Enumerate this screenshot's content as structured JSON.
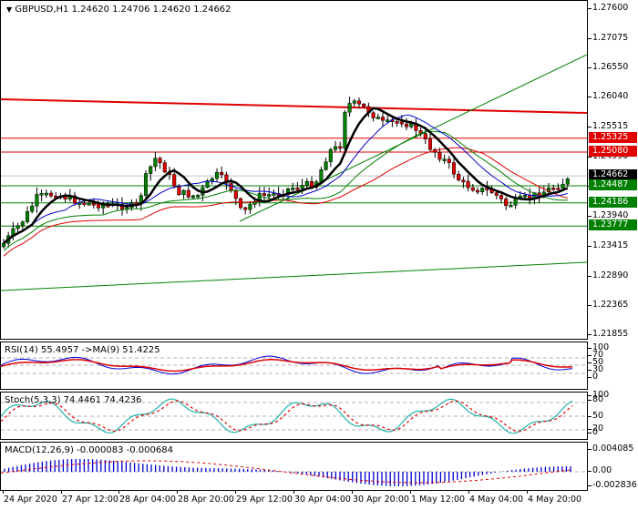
{
  "header": {
    "symbol_line": "GBPUSD,H1  1.24620 1.24706 1.24620 1.24662",
    "dropdown_icon": "triangle-down"
  },
  "price_axis": {
    "labels": [
      "1.27600",
      "1.27075",
      "1.26550",
      "1.26040",
      "1.25515",
      "1.24990",
      "1.24465",
      "1.23940",
      "1.23415",
      "1.22890",
      "1.22365",
      "1.21855"
    ],
    "tags": [
      {
        "value": "1.25325",
        "color": "#e00000"
      },
      {
        "value": "1.25080",
        "color": "#e00000"
      },
      {
        "value": "1.24662",
        "color": "#000000"
      },
      {
        "value": "1.24487",
        "color": "#008000"
      },
      {
        "value": "1.24186",
        "color": "#008000"
      },
      {
        "value": "1.23777",
        "color": "#008000"
      }
    ]
  },
  "rsi": {
    "title": "RSI(14) 55.4957  ->MA(9) 51.4225",
    "axis": [
      "100",
      "70",
      "50",
      "30",
      "0"
    ]
  },
  "stoch": {
    "title": "Stoch(5,3,3) 74.4461 74.4236",
    "axis": [
      "100",
      "80",
      "50",
      "20",
      "0"
    ]
  },
  "macd": {
    "title": "MACD(12,26,9) -0.000083 -0.000684",
    "axis": [
      "0.004085",
      "0.00",
      "-0.002836"
    ]
  },
  "time_axis": {
    "labels": [
      "24 Apr 2020",
      "27 Apr 12:00",
      "28 Apr 04:00",
      "28 Apr 20:00",
      "29 Apr 12:00",
      "30 Apr 04:00",
      "30 Apr 20:00",
      "1 May 12:00",
      "4 May 04:00",
      "4 May 20:00"
    ]
  },
  "colors": {
    "bull_candle": "#008000",
    "bear_candle": "#e00000",
    "support": "#008000",
    "resistance": "#e00000",
    "ma_fast": "#000000",
    "ma_blue": "#0000cc",
    "ma_green": "#008000",
    "ma_red": "#e00000",
    "stoch_main": "#20b2aa",
    "macd_hist": "#0000cc"
  },
  "chart_data": [
    {
      "type": "candlestick",
      "title": "GBPUSD,H1",
      "ohlc_last": {
        "open": 1.2462,
        "high": 1.24706,
        "low": 1.2462,
        "close": 1.24662
      },
      "ylim": [
        1.21855,
        1.276
      ],
      "x": [
        "24 Apr 2020",
        "27 Apr 12:00",
        "28 Apr 04:00",
        "28 Apr 20:00",
        "29 Apr 12:00",
        "30 Apr 04:00",
        "30 Apr 20:00",
        "1 May 12:00",
        "4 May 04:00",
        "4 May 20:00"
      ],
      "close_approx": [
        1.2365,
        1.2445,
        1.248,
        1.2455,
        1.242,
        1.248,
        1.2595,
        1.255,
        1.2425,
        1.2466
      ],
      "horizontal_levels": {
        "resistance": [
          1.2604,
          1.25325,
          1.2508
        ],
        "support": [
          1.24487,
          1.24186,
          1.23777
        ],
        "current": 1.24662
      },
      "trendlines": [
        {
          "name": "rising-channel-upper",
          "from": [
            29,
            1.2385
          ],
          "to": [
            100,
            1.267
          ],
          "color": "#008000"
        },
        {
          "name": "rising-channel-lower",
          "from": [
            0,
            1.2275
          ],
          "to": [
            100,
            1.2315
          ],
          "color": "#008000"
        },
        {
          "name": "falling-resistance",
          "from": [
            0,
            1.2604
          ],
          "to": [
            100,
            1.2583
          ],
          "color": "#e00000"
        }
      ]
    },
    {
      "type": "line",
      "title": "RSI(14)",
      "series": [
        {
          "name": "RSI(14)",
          "last": 55.4957
        },
        {
          "name": "MA(9)",
          "last": 51.4225
        }
      ],
      "ylim": [
        0,
        100
      ],
      "levels": [
        70,
        50,
        30
      ]
    },
    {
      "type": "line",
      "title": "Stoch(5,3,3)",
      "series": [
        {
          "name": "%K",
          "last": 74.4461
        },
        {
          "name": "%D",
          "last": 74.4236
        }
      ],
      "ylim": [
        0,
        100
      ],
      "levels": [
        80,
        50,
        20
      ]
    },
    {
      "type": "bar",
      "title": "MACD(12,26,9)",
      "series": [
        {
          "name": "MACD",
          "last": -8.3e-05
        },
        {
          "name": "Signal",
          "last": -0.000684
        }
      ],
      "ylim": [
        -0.002836,
        0.004085
      ]
    }
  ]
}
